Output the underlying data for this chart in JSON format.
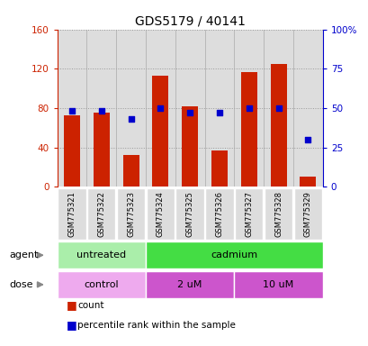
{
  "title": "GDS5179 / 40141",
  "samples": [
    "GSM775321",
    "GSM775322",
    "GSM775323",
    "GSM775324",
    "GSM775325",
    "GSM775326",
    "GSM775327",
    "GSM775328",
    "GSM775329"
  ],
  "counts": [
    73,
    75,
    32,
    113,
    82,
    37,
    117,
    125,
    10
  ],
  "percentiles": [
    48,
    48,
    43,
    50,
    47,
    47,
    50,
    50,
    30
  ],
  "bar_color": "#cc2200",
  "dot_color": "#0000cc",
  "left_ylim": [
    0,
    160
  ],
  "left_yticks": [
    0,
    40,
    80,
    120,
    160
  ],
  "left_yticklabels": [
    "0",
    "40",
    "80",
    "120",
    "160"
  ],
  "right_ylim": [
    0,
    100
  ],
  "right_yticks": [
    0,
    25,
    50,
    75,
    100
  ],
  "right_yticklabels": [
    "0",
    "25",
    "50",
    "75",
    "100%"
  ],
  "agent_groups": [
    {
      "label": "untreated",
      "start": 0,
      "end": 3,
      "color": "#aaeeaa"
    },
    {
      "label": "cadmium",
      "start": 3,
      "end": 9,
      "color": "#44dd44"
    }
  ],
  "dose_groups": [
    {
      "label": "control",
      "start": 0,
      "end": 3,
      "color": "#eeaaee"
    },
    {
      "label": "2 uM",
      "start": 3,
      "end": 6,
      "color": "#cc55cc"
    },
    {
      "label": "10 uM",
      "start": 6,
      "end": 9,
      "color": "#cc55cc"
    }
  ],
  "legend_count_label": "count",
  "legend_pct_label": "percentile rank within the sample",
  "agent_label": "agent",
  "dose_label": "dose",
  "left_tick_color": "#cc2200",
  "right_tick_color": "#0000cc",
  "bar_width": 0.55,
  "col_bg_color": "#dddddd",
  "grid_linestyle": "dotted",
  "grid_color": "#999999",
  "plot_bg": "#ffffff"
}
